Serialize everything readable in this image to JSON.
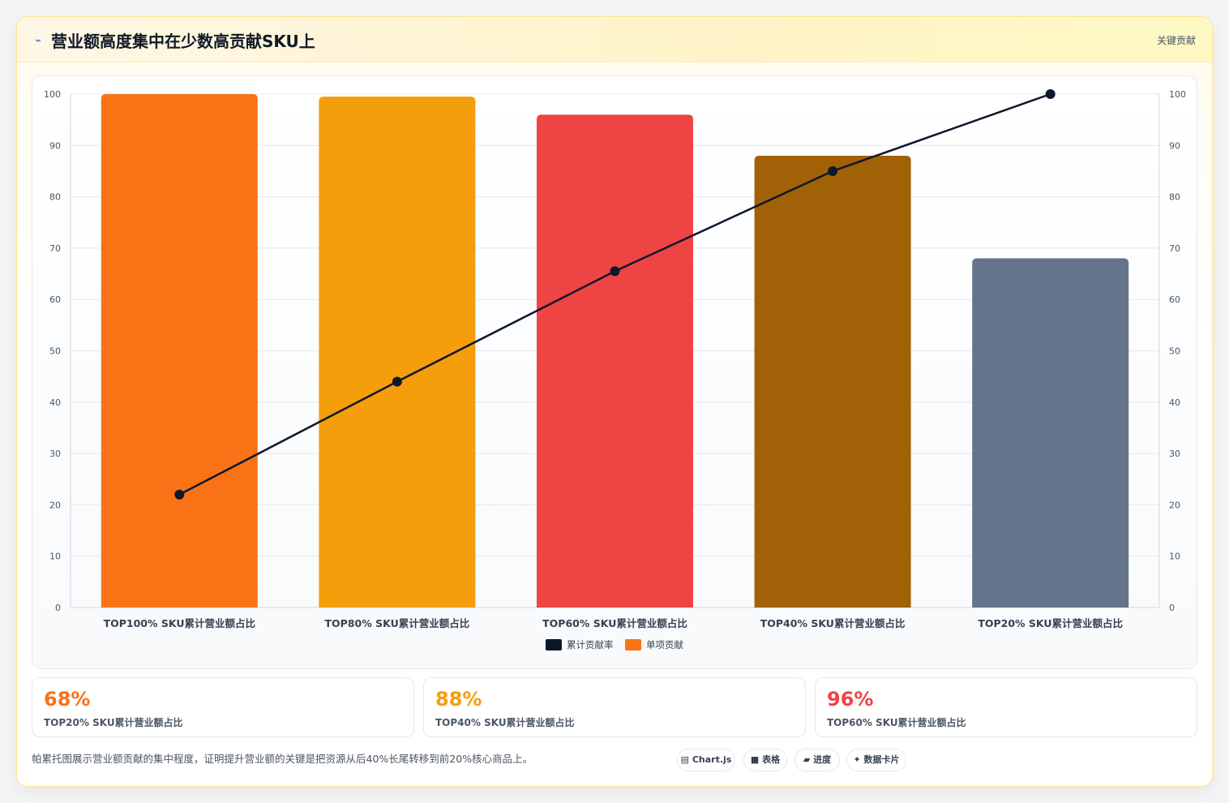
{
  "header": {
    "icon": "chart-icon",
    "title": "营业额高度集中在少数高贡献SKU上",
    "tag": "关键贡献"
  },
  "chart_data": {
    "type": "bar",
    "categories": [
      "TOP100% SKU累计营业额占比",
      "TOP80% SKU累计营业额占比",
      "TOP60% SKU累计营业额占比",
      "TOP40% SKU累计营业额占比",
      "TOP20% SKU累计营业额占比"
    ],
    "series": [
      {
        "name": "单项贡献",
        "type": "bar",
        "values": [
          100,
          99.5,
          96,
          88,
          68
        ],
        "colors": [
          "#f97316",
          "#f59e0b",
          "#ef4444",
          "#a16207",
          "#64748b"
        ]
      },
      {
        "name": "累计贡献率",
        "type": "line",
        "values": [
          22,
          44,
          65.5,
          85,
          100
        ],
        "color": "#0f172a"
      }
    ],
    "ylim": [
      0,
      100
    ],
    "y_ticks": [
      0,
      10,
      20,
      30,
      40,
      50,
      60,
      70,
      80,
      90,
      100
    ],
    "y2lim": [
      0,
      100
    ],
    "y2_ticks": [
      0,
      10,
      20,
      30,
      40,
      50,
      60,
      70,
      80,
      90,
      100
    ],
    "grid": true,
    "legend": "bottom",
    "legend_items": [
      {
        "label": "累计贡献率",
        "color": "#0f172a"
      },
      {
        "label": "单项贡献",
        "color": "#f97316"
      }
    ]
  },
  "stats": [
    {
      "value": "68%",
      "label": "TOP20% SKU累计营业额占比",
      "color": "#f97316"
    },
    {
      "value": "88%",
      "label": "TOP40% SKU累计营业额占比",
      "color": "#f59e0b"
    },
    {
      "value": "96%",
      "label": "TOP60% SKU累计营业额占比",
      "color": "#ef4444"
    }
  ],
  "footer": {
    "note": "帕累托图展示营业额贡献的集中程度，证明提升营业额的关键是把资源从后40%长尾转移到前20%核心商品上。",
    "chips": [
      {
        "icon": "chart-icon",
        "glyph": "▤",
        "label": "Chart.js"
      },
      {
        "icon": "table-icon",
        "glyph": "■",
        "label": "表格"
      },
      {
        "icon": "progress-icon",
        "glyph": "▰",
        "label": "进度"
      },
      {
        "icon": "card-icon",
        "glyph": "✦",
        "label": "数据卡片"
      }
    ]
  }
}
